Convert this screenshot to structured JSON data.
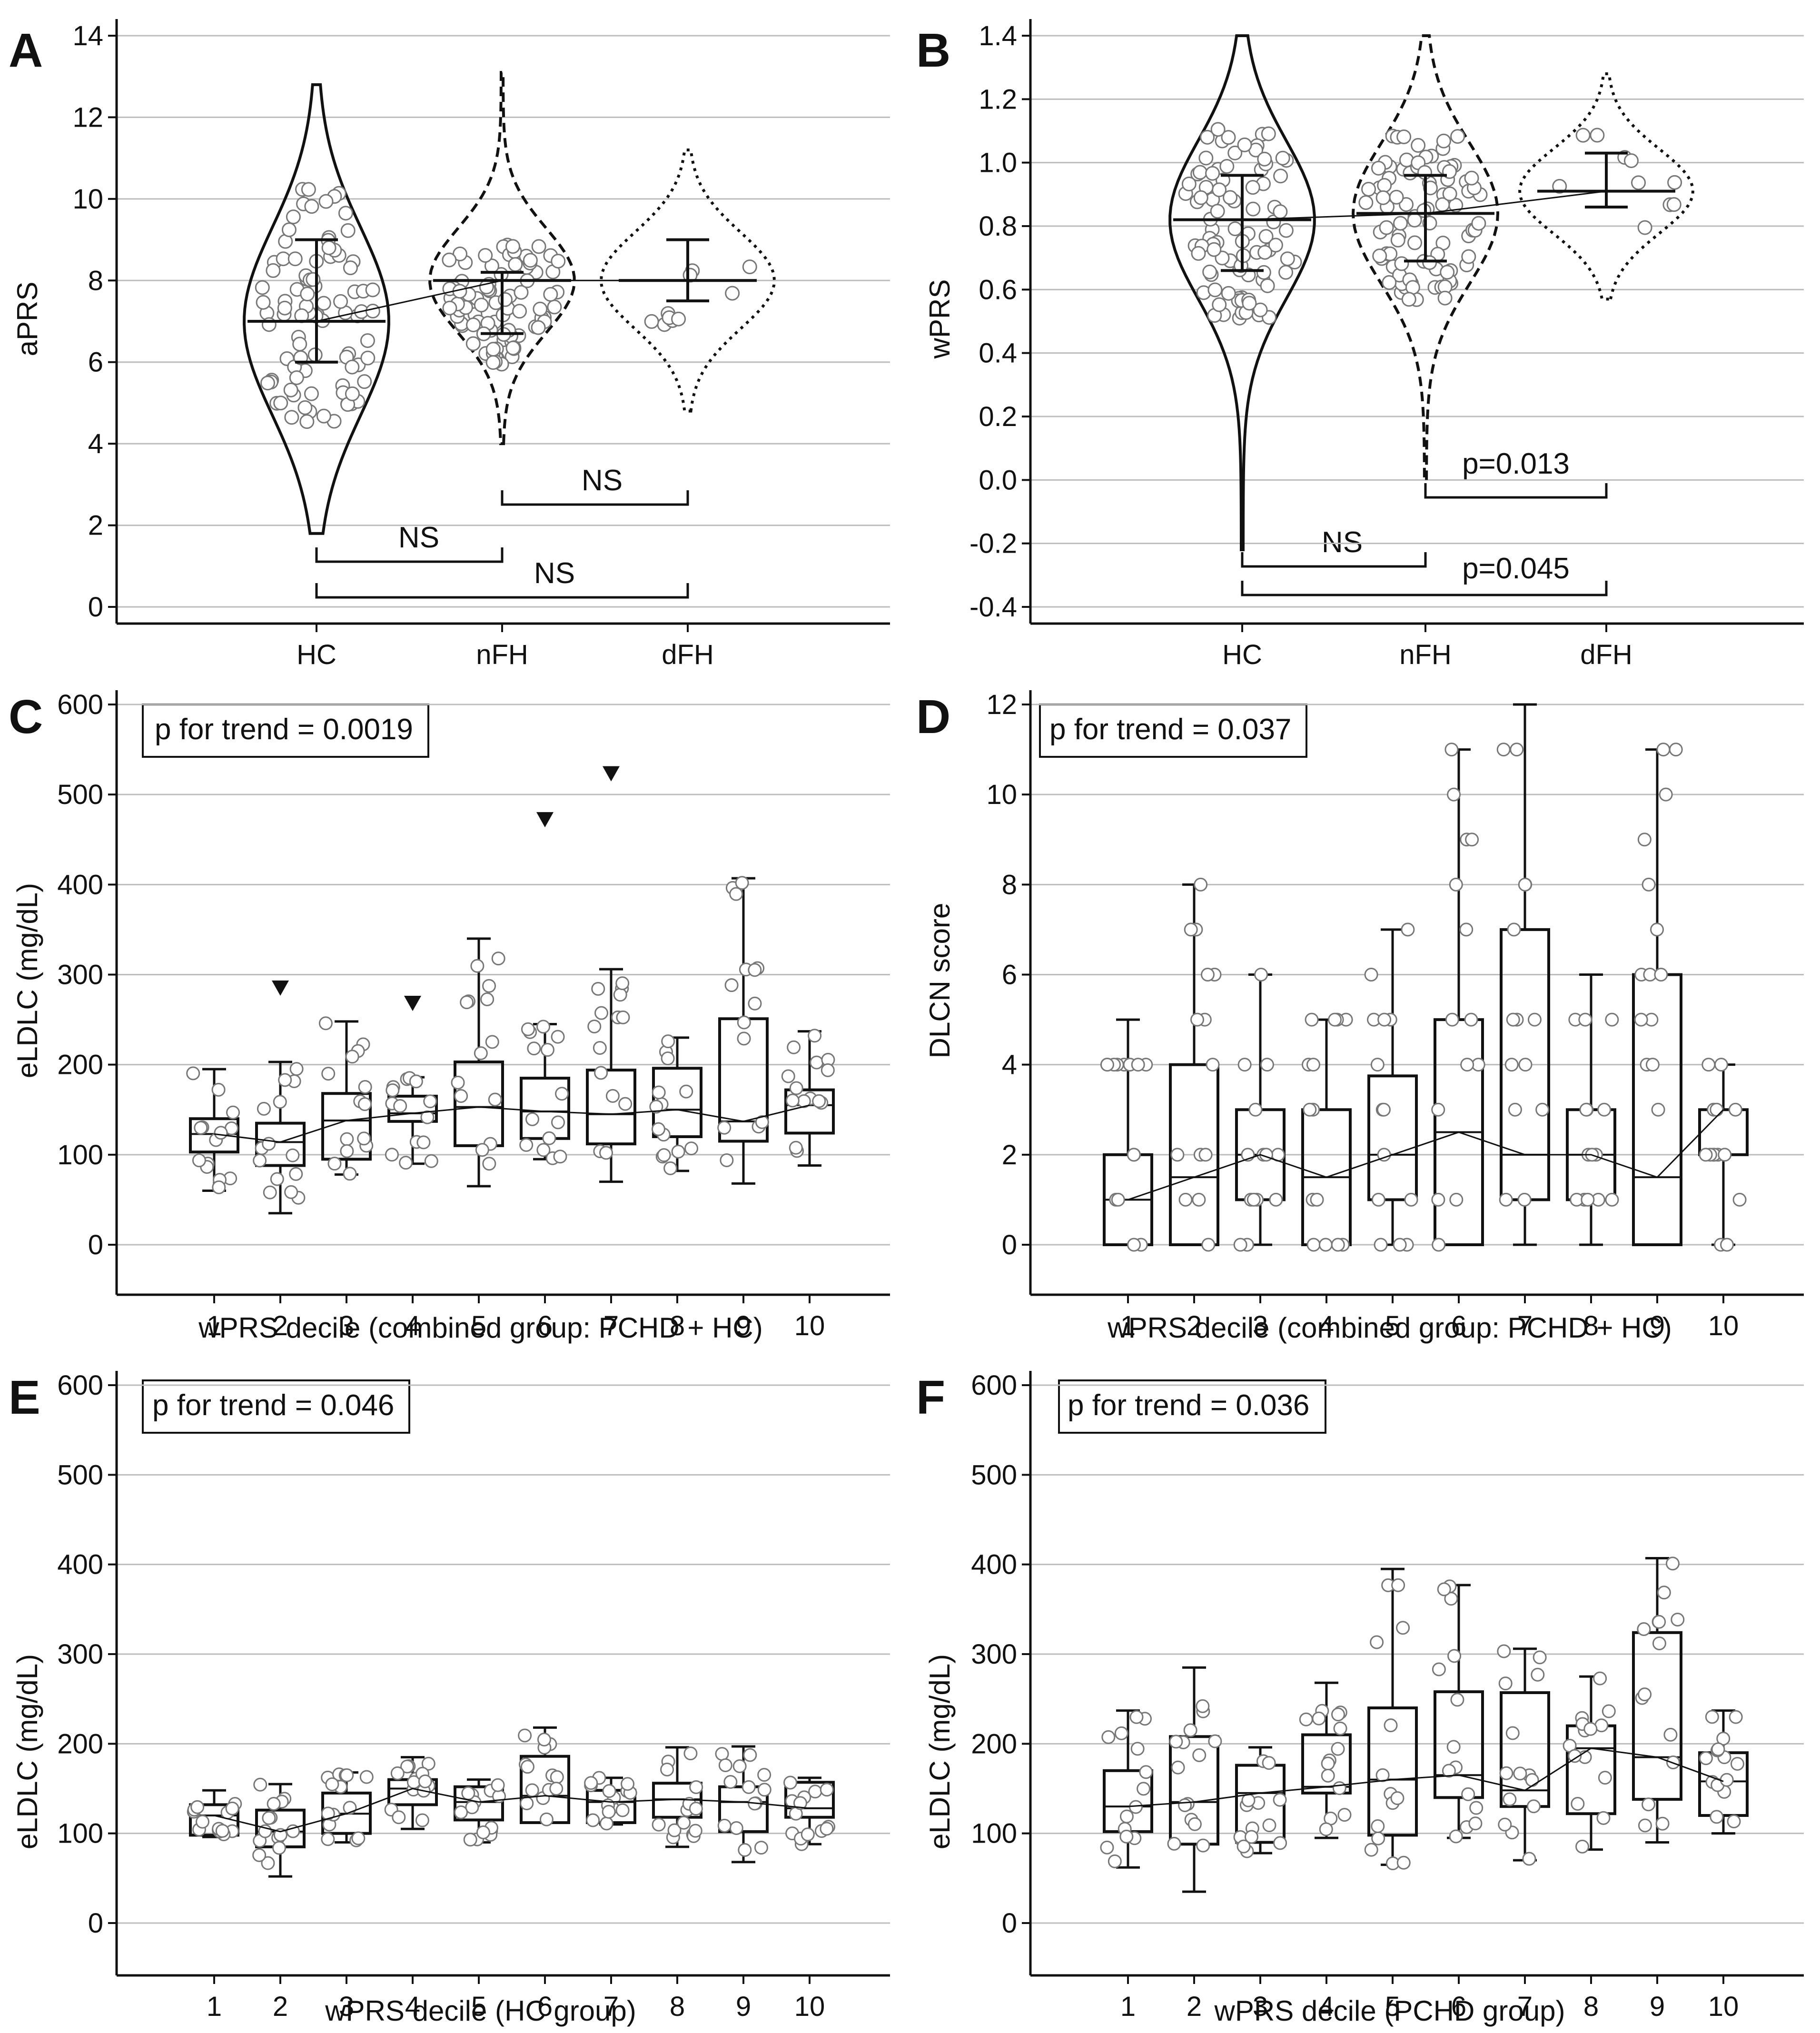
{
  "figure": {
    "panel_letters": [
      "A",
      "B",
      "C",
      "D",
      "E",
      "F"
    ]
  },
  "chart_data": [
    {
      "id": "A",
      "type": "violin",
      "title": "",
      "ylabel": "aPRS",
      "xlabel": "",
      "ylim": [
        0,
        14
      ],
      "yticks": [
        "0",
        "2",
        "4",
        "6",
        "8",
        "10",
        "12",
        "14"
      ],
      "categories": [
        "HC",
        "nFH",
        "dFH"
      ],
      "medians": [
        7,
        8,
        8
      ],
      "iqr": [
        [
          6,
          9
        ],
        [
          6.7,
          8.2
        ],
        [
          7.5,
          9
        ]
      ],
      "range": [
        [
          1.8,
          12.8
        ],
        [
          4,
          13.1
        ],
        [
          4.8,
          11.2
        ]
      ],
      "annotations": [
        {
          "label": "NS",
          "from": "HC",
          "to": "nFH"
        },
        {
          "label": "NS",
          "from": "nFH",
          "to": "dFH"
        },
        {
          "label": "NS",
          "from": "HC",
          "to": "dFH"
        }
      ]
    },
    {
      "id": "B",
      "type": "violin",
      "title": "",
      "ylabel": "wPRS",
      "xlabel": "",
      "ylim": [
        -0.4,
        1.4
      ],
      "yticks": [
        "-0.4",
        "-0.2",
        "0.0",
        "0.2",
        "0.4",
        "0.6",
        "0.8",
        "1.0",
        "1.2",
        "1.4"
      ],
      "categories": [
        "HC",
        "nFH",
        "dFH"
      ],
      "medians": [
        0.82,
        0.84,
        0.91
      ],
      "iqr": [
        [
          0.66,
          0.96
        ],
        [
          0.69,
          0.96
        ],
        [
          0.86,
          1.03
        ]
      ],
      "range": [
        [
          -0.22,
          1.4
        ],
        [
          0.0,
          1.4
        ],
        [
          0.57,
          1.28
        ]
      ],
      "annotations": [
        {
          "label": "NS",
          "from": "HC",
          "to": "nFH"
        },
        {
          "label": "p=0.013",
          "from": "nFH",
          "to": "dFH"
        },
        {
          "label": "p=0.045",
          "from": "HC",
          "to": "dFH"
        }
      ]
    },
    {
      "id": "C",
      "type": "box",
      "ylabel": "eLDLC (mg/dL)",
      "xlabel": "wPRS decile (combined group: PCHD + HC)",
      "ylim": [
        0,
        600
      ],
      "yticks": [
        "0",
        "100",
        "200",
        "300",
        "400",
        "500",
        "600"
      ],
      "categories": [
        "1",
        "2",
        "3",
        "4",
        "5",
        "6",
        "7",
        "8",
        "9",
        "10"
      ],
      "trend_label": "p for trend = 0.0019",
      "median": [
        123,
        114,
        138,
        146,
        153,
        148,
        145,
        150,
        137,
        155
      ],
      "q1": [
        103,
        88,
        95,
        137,
        110,
        118,
        112,
        120,
        115,
        124
      ],
      "q3": [
        140,
        135,
        168,
        165,
        203,
        185,
        194,
        196,
        251,
        172
      ],
      "whisker_low": [
        60,
        35,
        78,
        90,
        65,
        95,
        70,
        82,
        68,
        88
      ],
      "whisker_high": [
        195,
        203,
        248,
        186,
        340,
        245,
        306,
        230,
        407,
        237
      ],
      "outlier_markers": [
        {
          "decile": "2",
          "value": 285
        },
        {
          "decile": "4",
          "value": 268
        },
        {
          "decile": "6",
          "value": 472
        },
        {
          "decile": "7",
          "value": 523
        }
      ]
    },
    {
      "id": "D",
      "type": "box",
      "ylabel": "DLCN score",
      "xlabel": "wPRS decile (combined group: PCHD + HC)",
      "ylim": [
        0,
        12
      ],
      "yticks": [
        "0",
        "2",
        "4",
        "6",
        "8",
        "10",
        "12"
      ],
      "categories": [
        "1",
        "2",
        "3",
        "4",
        "5",
        "6",
        "7",
        "8",
        "9",
        "10"
      ],
      "trend_label": "p for trend = 0.037",
      "median": [
        1,
        1.5,
        2,
        1.5,
        2,
        2.5,
        2,
        2,
        1.5,
        3
      ],
      "q1": [
        0,
        0,
        1,
        0,
        1,
        0,
        1,
        1,
        0,
        2
      ],
      "q3": [
        2,
        4,
        3,
        3,
        3.75,
        5,
        7,
        3,
        6,
        3
      ],
      "whisker_low": [
        0,
        0,
        0,
        0,
        0,
        0,
        0,
        0,
        0,
        0
      ],
      "whisker_high": [
        5,
        8,
        6,
        5,
        7,
        11,
        12,
        6,
        11,
        4
      ]
    },
    {
      "id": "E",
      "type": "box",
      "ylabel": "eLDLC (mg/dL)",
      "xlabel": "wPRS decile (HC group)",
      "ylim": [
        0,
        600
      ],
      "yticks": [
        "0",
        "100",
        "200",
        "300",
        "400",
        "500",
        "600"
      ],
      "categories": [
        "1",
        "2",
        "3",
        "4",
        "5",
        "6",
        "7",
        "8",
        "9",
        "10"
      ],
      "trend_label": "p for trend = 0.046",
      "median": [
        120,
        102,
        122,
        150,
        135,
        142,
        135,
        138,
        135,
        128
      ],
      "q1": [
        98,
        85,
        100,
        132,
        115,
        112,
        112,
        118,
        102,
        118
      ],
      "q3": [
        132,
        126,
        145,
        160,
        152,
        186,
        148,
        156,
        152,
        157
      ],
      "whisker_low": [
        96,
        52,
        90,
        105,
        90,
        112,
        110,
        85,
        68,
        88
      ],
      "whisker_high": [
        148,
        155,
        168,
        185,
        160,
        218,
        162,
        196,
        197,
        162
      ]
    },
    {
      "id": "F",
      "type": "box",
      "ylabel": "eLDLC (mg/dL)",
      "xlabel": "wPRS decile (PCHD group)",
      "ylim": [
        0,
        600
      ],
      "yticks": [
        "0",
        "100",
        "200",
        "300",
        "400",
        "500",
        "600"
      ],
      "categories": [
        "1",
        "2",
        "3",
        "4",
        "5",
        "6",
        "7",
        "8",
        "9",
        "10"
      ],
      "trend_label": "p for trend = 0.036",
      "median": [
        130,
        135,
        145,
        152,
        160,
        165,
        148,
        195,
        185,
        158
      ],
      "q1": [
        102,
        88,
        90,
        145,
        98,
        140,
        130,
        122,
        138,
        120
      ],
      "q3": [
        170,
        208,
        176,
        210,
        240,
        258,
        257,
        220,
        324,
        190
      ],
      "whisker_low": [
        62,
        35,
        78,
        95,
        65,
        95,
        70,
        82,
        90,
        100
      ],
      "whisker_high": [
        237,
        285,
        196,
        268,
        395,
        377,
        306,
        275,
        407,
        237
      ]
    }
  ]
}
